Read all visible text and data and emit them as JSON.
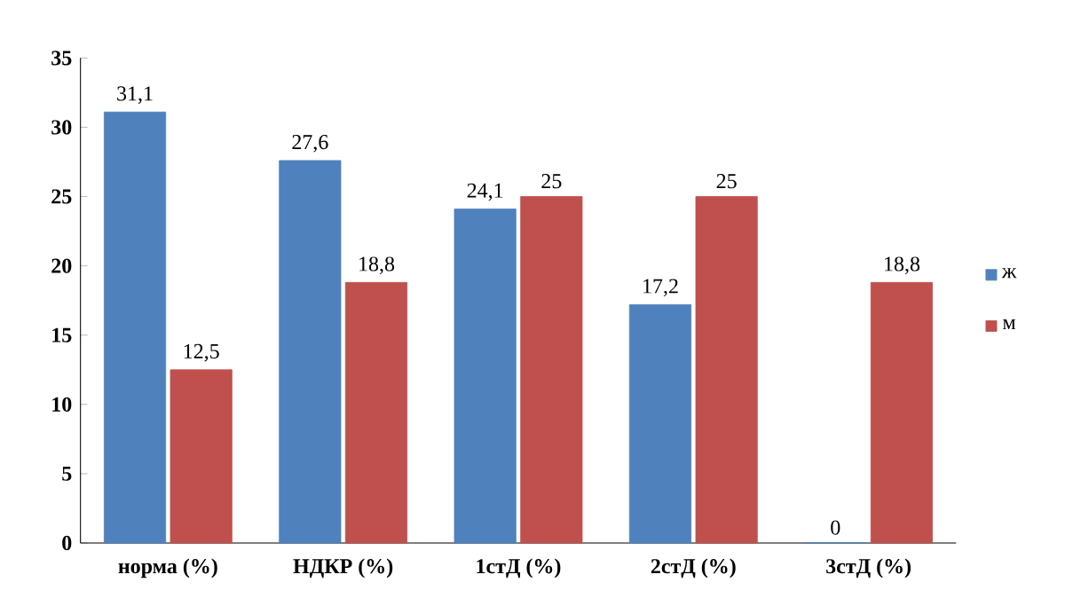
{
  "chart_data": {
    "type": "bar",
    "categories": [
      "норма (%)",
      "НДКР (%)",
      "1стД (%)",
      "2стД (%)",
      "3стД (%)"
    ],
    "series": [
      {
        "name": "ж",
        "color": "#4f81bd",
        "values": [
          31.1,
          27.6,
          24.1,
          17.2,
          0
        ],
        "value_labels": [
          "31,1",
          "27,6",
          "24,1",
          "17,2",
          "0"
        ]
      },
      {
        "name": "м",
        "color": "#c0504d",
        "values": [
          12.5,
          18.8,
          25,
          25,
          18.8
        ],
        "value_labels": [
          "12,5",
          "18,8",
          "25",
          "25",
          "18,8"
        ]
      }
    ],
    "ylim": [
      0,
      35
    ],
    "yticks": [
      0,
      5,
      10,
      15,
      20,
      25,
      30,
      35
    ],
    "grid": false,
    "legend": "right"
  }
}
